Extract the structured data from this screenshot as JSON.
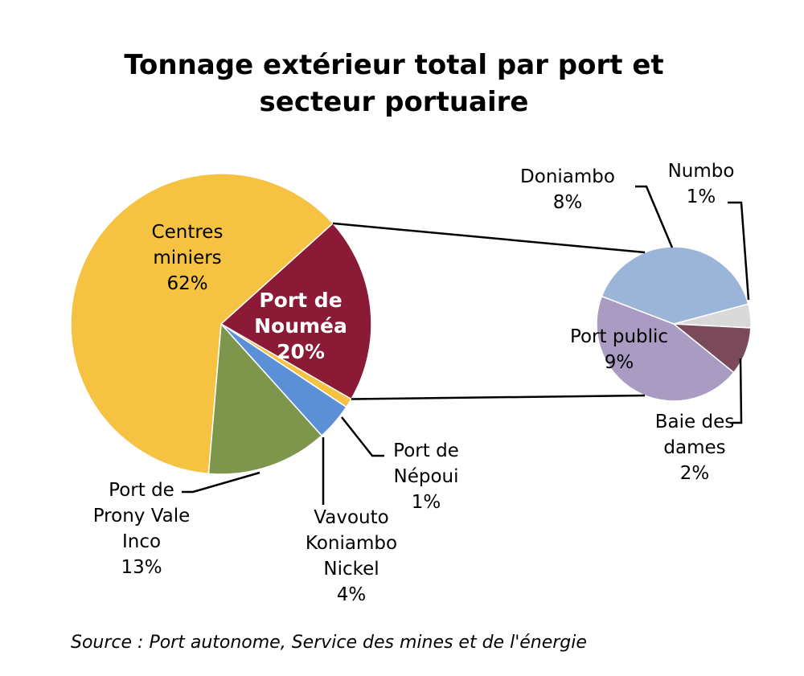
{
  "chart_data": {
    "type": "pie",
    "title_lines": [
      "Tonnage extérieur total par port et",
      "secteur portuaire"
    ],
    "source": "Source : Port autonome,   Service des mines et de l'énergie",
    "main_pie": {
      "slices": [
        {
          "key": "nouméa",
          "lines": [
            "Port de",
            "Nouméa",
            "20%"
          ],
          "value": 20,
          "color": "#8b1a36",
          "label_style": "white"
        },
        {
          "key": "nepoui",
          "lines": [
            "Port de",
            "Népoui",
            "1%"
          ],
          "value": 1,
          "color": "#f5c242",
          "label_style": "black"
        },
        {
          "key": "vavouto",
          "lines": [
            "Vavouto",
            "Koniambo",
            "Nickel",
            "4%"
          ],
          "value": 4,
          "color": "#5b8fd6",
          "label_style": "black"
        },
        {
          "key": "prony",
          "lines": [
            "Port de",
            "Prony Vale",
            "Inco",
            "13%"
          ],
          "value": 13,
          "color": "#7e964c",
          "label_style": "black"
        },
        {
          "key": "centres",
          "lines": [
            "Centres",
            "miniers",
            "62%"
          ],
          "value": 62,
          "color": "#f5c242",
          "label_style": "black"
        }
      ]
    },
    "secondary_pie": {
      "breakdown_of": "Port de Nouméa",
      "slices": [
        {
          "key": "numbo",
          "lines": [
            "Numbo",
            "1%"
          ],
          "value": 1,
          "color": "#d9d9d9"
        },
        {
          "key": "baie",
          "lines": [
            "Baie des",
            "dames",
            "2%"
          ],
          "value": 2,
          "color": "#7a4a5a"
        },
        {
          "key": "public",
          "lines": [
            "Port public",
            "9%"
          ],
          "value": 9,
          "color": "#a99bc2"
        },
        {
          "key": "doniambo",
          "lines": [
            "Doniambo",
            "8%"
          ],
          "value": 8,
          "color": "#9bb5d8"
        }
      ]
    }
  }
}
